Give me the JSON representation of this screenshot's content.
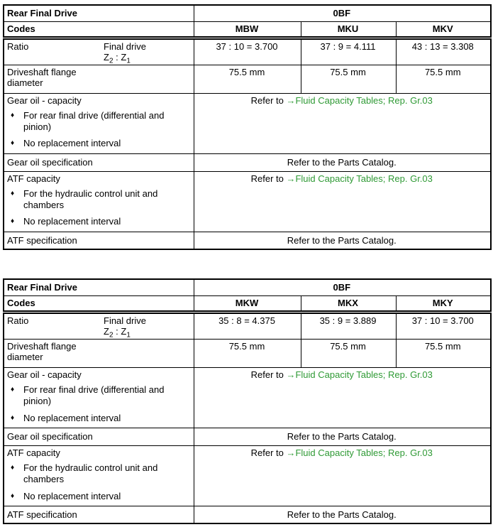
{
  "link_color": "#2f9a35",
  "bullet_icon": "♦",
  "tables": [
    {
      "header": {
        "label": "Rear Final Drive",
        "code": "0BF"
      },
      "codes_row": {
        "label": "Codes",
        "codes": [
          "MBW",
          "MKU",
          "MKV"
        ]
      },
      "ratio_row": {
        "label": "Ratio",
        "sublabel": "Final drive",
        "formula": {
          "base1": "Z",
          "sub1": "2",
          "sep": " : ",
          "base2": "Z",
          "sub2": "1"
        },
        "values": [
          "37 : 10 = 3.700",
          "37 : 9 = 4.111",
          "43 : 13 = 3.308"
        ]
      },
      "driveshaft_row": {
        "label": "Driveshaft flange\ndiameter",
        "values": [
          "75.5 mm",
          "75.5 mm",
          "75.5 mm"
        ]
      },
      "gear_oil_capacity_row": {
        "label": "Gear oil - capacity",
        "bullets": [
          "For rear final drive (differential and pinion)",
          "No replacement interval"
        ],
        "ref_prefix": "Refer to ",
        "ref_link": "→Fluid Capacity Tables; Rep. Gr.03"
      },
      "gear_oil_spec_row": {
        "label": "Gear oil specification",
        "value": "Refer to the Parts Catalog."
      },
      "atf_capacity_row": {
        "label": "ATF capacity",
        "bullets": [
          "For the hydraulic control unit and chambers",
          "No replacement interval"
        ],
        "ref_prefix": "Refer to ",
        "ref_link": "→Fluid Capacity Tables; Rep. Gr.03"
      },
      "atf_spec_row": {
        "label": "ATF specification",
        "value": "Refer to the Parts Catalog."
      }
    },
    {
      "header": {
        "label": "Rear Final Drive",
        "code": "0BF"
      },
      "codes_row": {
        "label": "Codes",
        "codes": [
          "MKW",
          "MKX",
          "MKY"
        ]
      },
      "ratio_row": {
        "label": "Ratio",
        "sublabel": "Final drive",
        "formula": {
          "base1": "Z",
          "sub1": "2",
          "sep": " : ",
          "base2": "Z",
          "sub2": "1"
        },
        "values": [
          "35 : 8 = 4.375",
          "35 : 9 = 3.889",
          "37 : 10 = 3.700"
        ]
      },
      "driveshaft_row": {
        "label": "Driveshaft flange\ndiameter",
        "values": [
          "75.5 mm",
          "75.5 mm",
          "75.5 mm"
        ]
      },
      "gear_oil_capacity_row": {
        "label": "Gear oil - capacity",
        "bullets": [
          "For rear final drive (differential and pinion)",
          "No replacement interval"
        ],
        "ref_prefix": "Refer to ",
        "ref_link": "→Fluid Capacity Tables; Rep. Gr.03"
      },
      "gear_oil_spec_row": {
        "label": "Gear oil specification",
        "value": "Refer to the Parts Catalog."
      },
      "atf_capacity_row": {
        "label": "ATF capacity",
        "bullets": [
          "For the hydraulic control unit and chambers",
          "No replacement interval"
        ],
        "ref_prefix": "Refer to ",
        "ref_link": "→Fluid Capacity Tables; Rep. Gr.03"
      },
      "atf_spec_row": {
        "label": "ATF specification",
        "value": "Refer to the Parts Catalog."
      }
    }
  ]
}
